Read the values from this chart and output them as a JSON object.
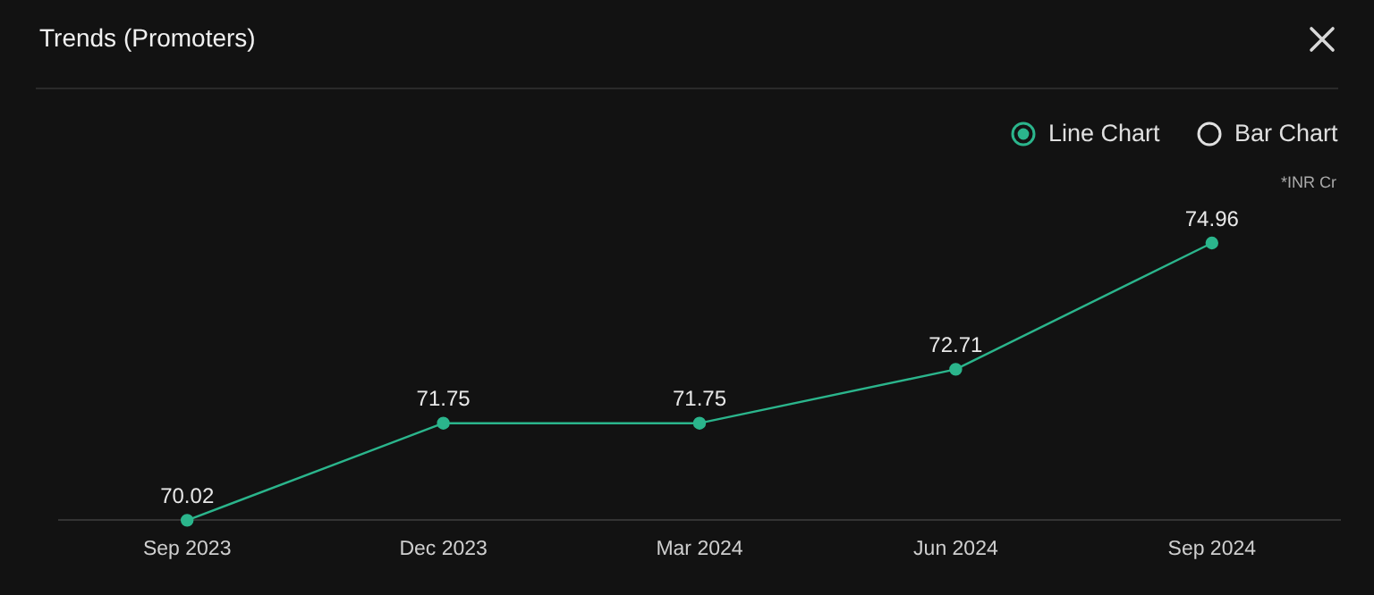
{
  "chart_data": {
    "type": "line",
    "title": "Trends (Promoters)",
    "categories": [
      "Sep 2023",
      "Dec 2023",
      "Mar 2024",
      "Jun 2024",
      "Sep 2024"
    ],
    "values": [
      70.02,
      71.75,
      71.75,
      72.71,
      74.96
    ],
    "color": "#2bb58c",
    "data_labels": true,
    "grid": false,
    "legend": false,
    "tick_labels": "x",
    "marker": "circle",
    "line_style": "solid",
    "annotations": [
      "Line Chart",
      "Bar Chart",
      "*INR Cr"
    ]
  }
}
